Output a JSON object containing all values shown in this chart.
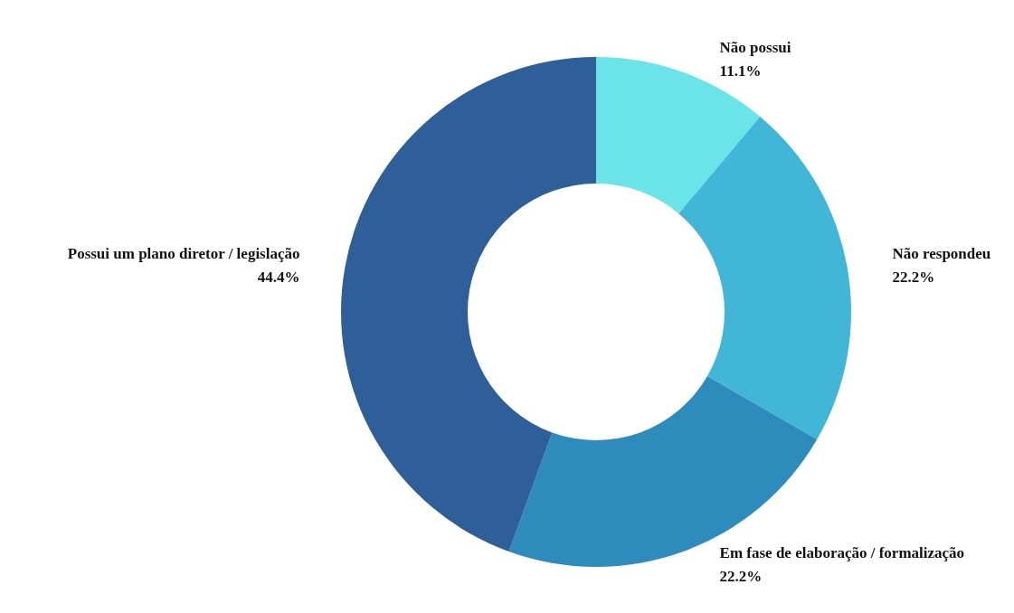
{
  "chart_data": {
    "type": "donut",
    "categories": [
      "Não possui",
      "Não respondeu",
      "Em fase de elaboração / formalização",
      "Possui um plano diretor / legislação"
    ],
    "values": [
      11.1,
      22.2,
      22.2,
      44.4
    ],
    "value_labels": [
      "11.1%",
      "22.2%",
      "22.2%",
      "44.4%"
    ],
    "colors": [
      "#6ae4e8",
      "#42b6d6",
      "#2e8cbd",
      "#2e5f98"
    ],
    "legend": false
  }
}
